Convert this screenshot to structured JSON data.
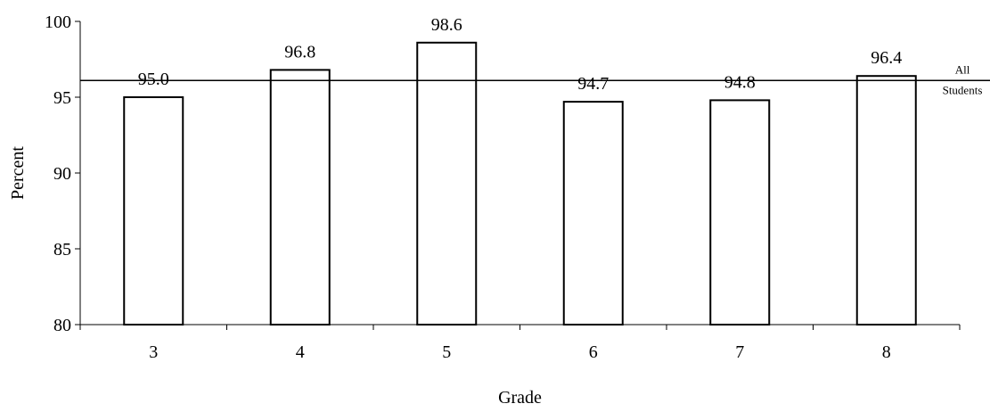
{
  "chart_data": {
    "type": "bar",
    "categories": [
      "3",
      "4",
      "5",
      "6",
      "7",
      "8"
    ],
    "values": [
      95.0,
      96.8,
      98.6,
      94.7,
      94.8,
      96.4
    ],
    "value_labels": [
      "95.0",
      "96.8",
      "98.6",
      "94.7",
      "94.8",
      "96.4"
    ],
    "title": "",
    "xlabel": "Grade",
    "ylabel": "Percent",
    "ylim": [
      80,
      100
    ],
    "yticks": [
      "80",
      "85",
      "90",
      "95",
      "100"
    ],
    "grid": false,
    "legend": "none",
    "reference_line": {
      "value": 96.1,
      "label_line1": "All",
      "label_line2": "Students"
    },
    "colors": {
      "bar_fill": "#ffffff",
      "bar_stroke": "#000000"
    }
  }
}
